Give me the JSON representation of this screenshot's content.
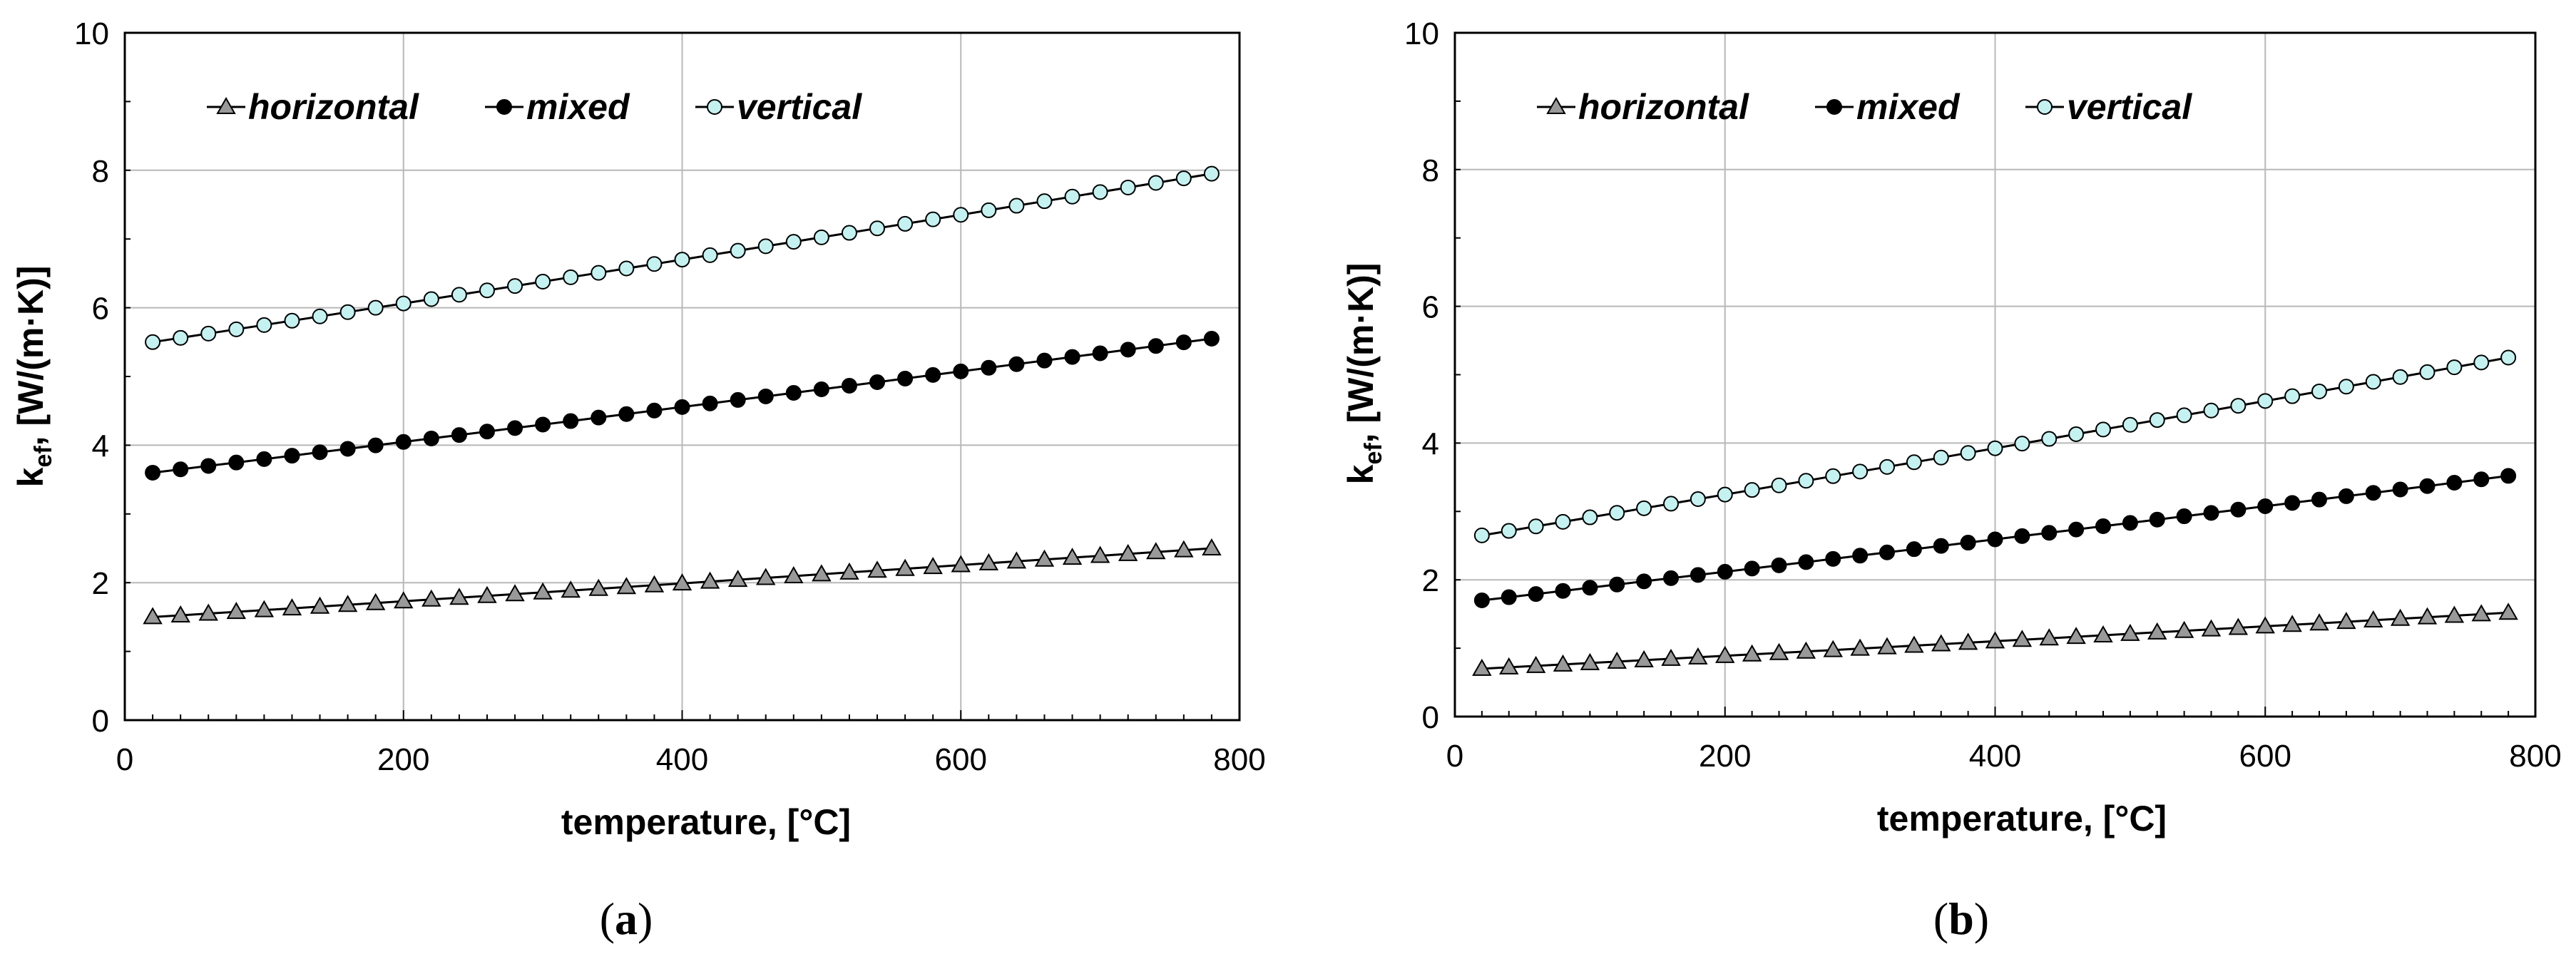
{
  "chart_data": [
    {
      "type": "line",
      "panel_label": "a",
      "xlabel": "temperature, [°C]",
      "ylabel_main": "k",
      "ylabel_sub": "ef",
      "ylabel_rest": ", [W/(m·K)]",
      "xlim": [
        0,
        800
      ],
      "ylim": [
        0,
        10
      ],
      "xticks": [
        "0",
        "200",
        "400",
        "600",
        "800"
      ],
      "yticks": [
        "0",
        "2",
        "4",
        "6",
        "8",
        "10"
      ],
      "legend_position": "top-left",
      "series": [
        {
          "name": "horizontal",
          "marker": "triangle",
          "color": "#999999",
          "x_start": 20,
          "x_step": 20,
          "count": 39,
          "y_start": 1.5,
          "y_end": 2.5
        },
        {
          "name": "mixed",
          "marker": "circle",
          "color": "#000000",
          "x_start": 20,
          "x_step": 20,
          "count": 39,
          "y_start": 3.6,
          "y_end": 5.55
        },
        {
          "name": "vertical",
          "marker": "circle",
          "color": "#c6f1f1",
          "x_start": 20,
          "x_step": 20,
          "count": 39,
          "y_start": 5.5,
          "y_end": 7.95
        }
      ]
    },
    {
      "type": "line",
      "panel_label": "b",
      "xlabel": "temperature, [°C]",
      "ylabel_main": "k",
      "ylabel_sub": "ef",
      "ylabel_rest": ", [W/(m·K)]",
      "xlim": [
        0,
        800
      ],
      "ylim": [
        0,
        10
      ],
      "xticks": [
        "0",
        "200",
        "400",
        "600",
        "800"
      ],
      "yticks": [
        "0",
        "2",
        "4",
        "6",
        "8",
        "10"
      ],
      "legend_position": "top-left",
      "series": [
        {
          "name": "horizontal",
          "marker": "triangle",
          "color": "#999999",
          "x_start": 20,
          "x_step": 20,
          "count": 39,
          "y_start": 0.7,
          "y_end": 1.52
        },
        {
          "name": "mixed",
          "marker": "circle",
          "color": "#000000",
          "x_start": 20,
          "x_step": 20,
          "count": 39,
          "y_start": 1.7,
          "y_end": 3.52
        },
        {
          "name": "vertical",
          "marker": "circle",
          "color": "#c6f1f1",
          "x_start": 20,
          "x_step": 20,
          "count": 39,
          "y_start": 2.65,
          "y_end": 5.25
        }
      ]
    }
  ]
}
